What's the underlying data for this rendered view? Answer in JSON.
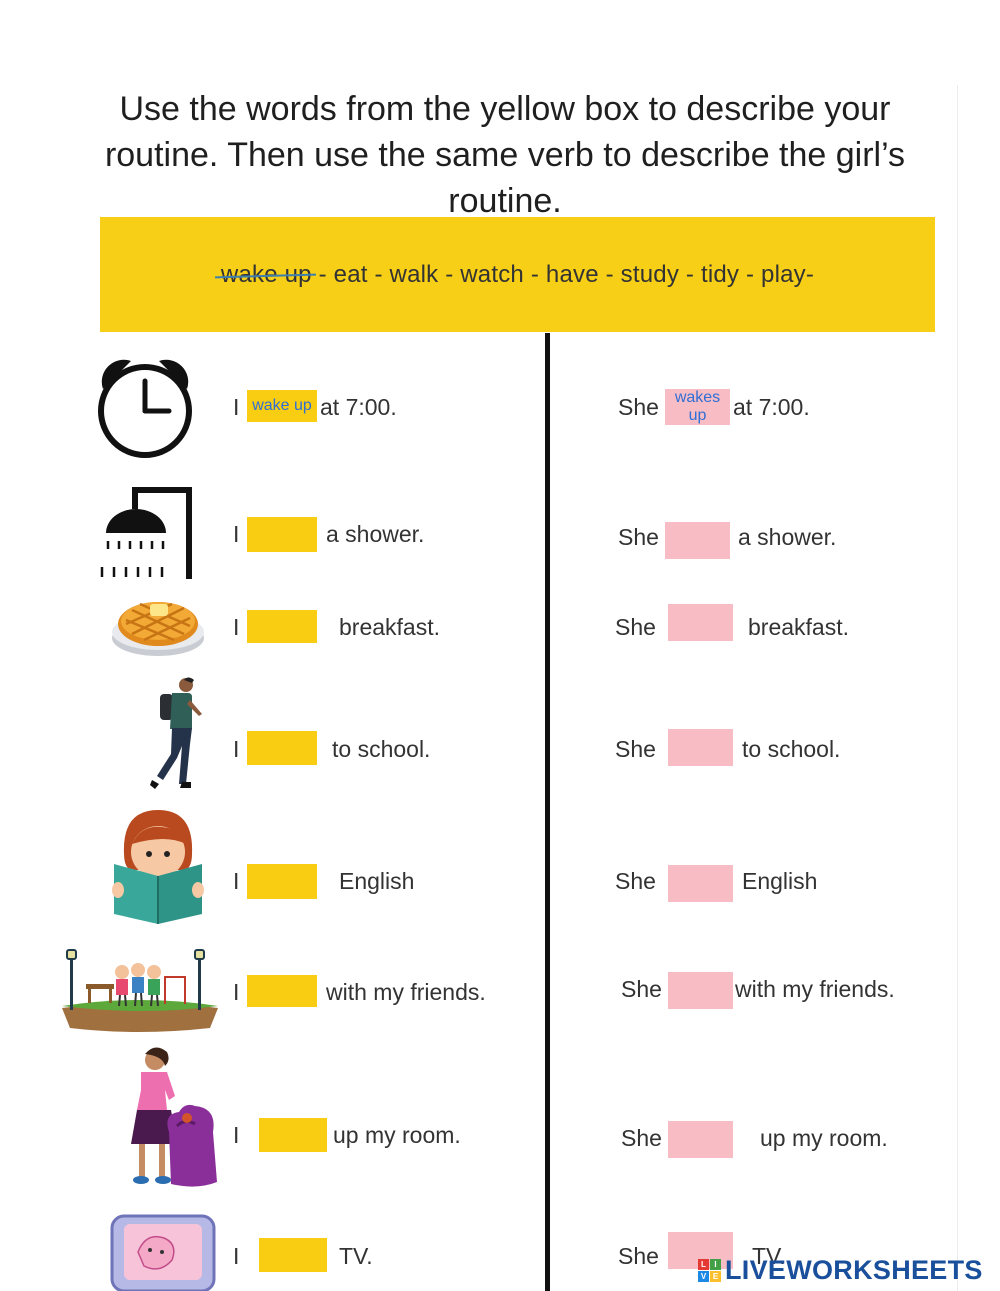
{
  "instructions": "Use the words from the yellow box to describe your routine.  Then use the same verb to describe the girl’s routine.",
  "word_box": {
    "struck_word": "wake up",
    "remaining_words": " - eat - walk - watch - have - study - tidy - play-"
  },
  "rows": [
    {
      "icon": "alarm-clock-icon",
      "pronoun_i": "I",
      "answer_i": "wake up",
      "suffix_i": "at 7:00.",
      "pronoun_she": "She",
      "answer_she": "wakes up",
      "suffix_she": "at 7:00."
    },
    {
      "icon": "shower-icon",
      "pronoun_i": "I",
      "answer_i": "",
      "suffix_i": "a shower.",
      "pronoun_she": "She",
      "answer_she": "",
      "suffix_she": "a shower."
    },
    {
      "icon": "waffle-icon",
      "pronoun_i": "I",
      "answer_i": "",
      "suffix_i": "breakfast.",
      "pronoun_she": "She",
      "answer_she": "",
      "suffix_she": "breakfast."
    },
    {
      "icon": "walking-student-icon",
      "pronoun_i": "I",
      "answer_i": "",
      "suffix_i": "to school.",
      "pronoun_she": "She",
      "answer_she": "",
      "suffix_she": "to school."
    },
    {
      "icon": "girl-reading-icon",
      "pronoun_i": "I",
      "answer_i": "",
      "suffix_i": "English",
      "pronoun_she": "She",
      "answer_she": "",
      "suffix_she": "English"
    },
    {
      "icon": "kids-playground-icon",
      "pronoun_i": "I",
      "answer_i": "",
      "suffix_i": "with my friends.",
      "pronoun_she": "She",
      "answer_she": "",
      "suffix_she": "with my friends."
    },
    {
      "icon": "woman-tidying-icon",
      "pronoun_i": "I",
      "answer_i": "",
      "suffix_i": "up my room.",
      "pronoun_she": "She",
      "answer_she": "",
      "suffix_she": "up my room."
    },
    {
      "icon": "television-icon",
      "pronoun_i": "I",
      "answer_i": "",
      "suffix_i": "TV.",
      "pronoun_she": "She",
      "answer_she": "",
      "suffix_she": "TV."
    }
  ],
  "brand": {
    "logo_letters": [
      "L",
      "I",
      "V",
      "E"
    ],
    "name": "LIVEWORKSHEETS"
  },
  "colors": {
    "yellow": "#f7cf16",
    "pink": "#f8bcc4",
    "answer_text": "#2f6fd6",
    "brand": "#1a4f9c"
  }
}
